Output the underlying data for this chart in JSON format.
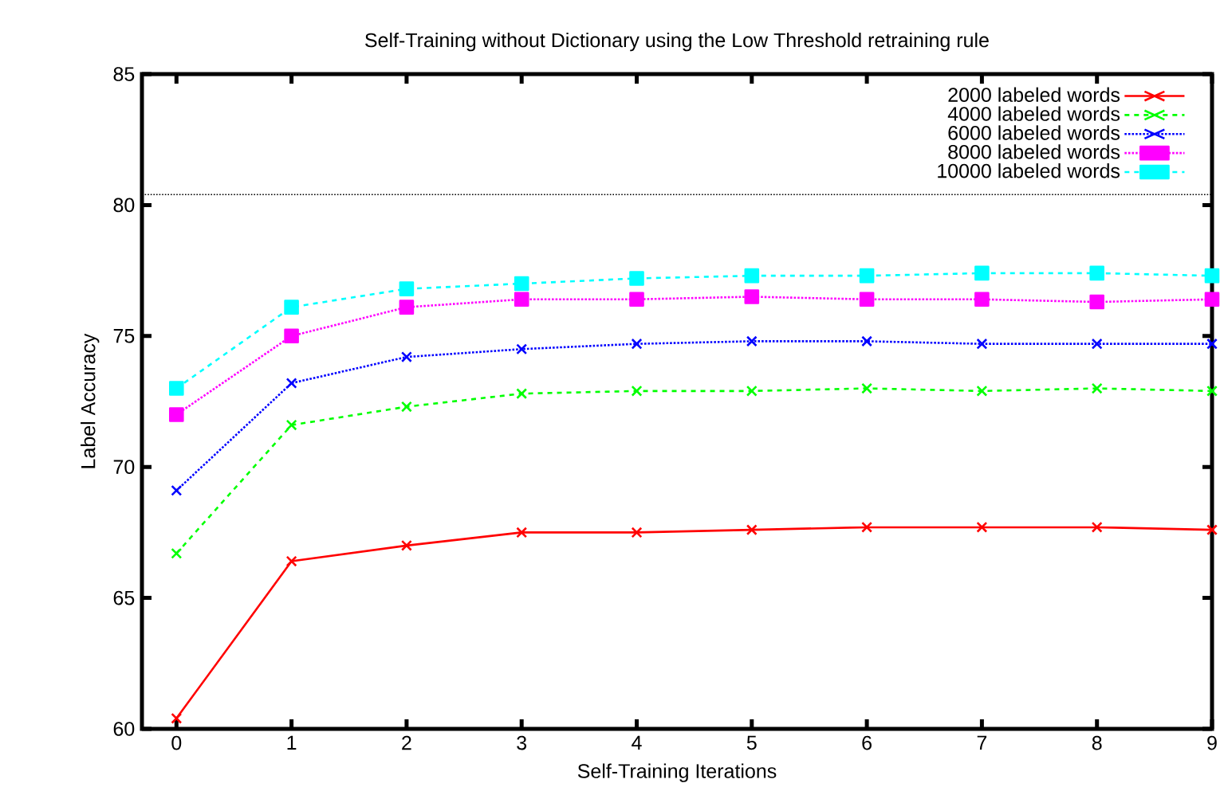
{
  "chart_data": {
    "type": "line",
    "title": "Self-Training without Dictionary using the Low Threshold retraining rule",
    "xlabel": "Self-Training Iterations",
    "ylabel": "Label Accuracy",
    "x": [
      0,
      1,
      2,
      3,
      4,
      5,
      6,
      7,
      8,
      9
    ],
    "xlim": [
      -0.3,
      9
    ],
    "xticks": [
      0,
      1,
      2,
      3,
      4,
      5,
      6,
      7,
      8,
      9
    ],
    "ylim": [
      60,
      85
    ],
    "yticks": [
      60,
      65,
      70,
      75,
      80,
      85
    ],
    "series": [
      {
        "name": "2000 labeled words",
        "color": "#ff0000",
        "marker": "cross",
        "line_style": "solid",
        "values": [
          60.4,
          66.4,
          67.0,
          67.5,
          67.5,
          67.6,
          67.7,
          67.7,
          67.7,
          67.6
        ]
      },
      {
        "name": "4000 labeled words",
        "color": "#00ff00",
        "marker": "cross",
        "line_style": "dashed",
        "values": [
          66.7,
          71.6,
          72.3,
          72.8,
          72.9,
          72.9,
          73.0,
          72.9,
          73.0,
          72.9
        ]
      },
      {
        "name": "6000 labeled words",
        "color": "#0000ff",
        "marker": "cross",
        "line_style": "dotted",
        "values": [
          69.1,
          73.2,
          74.2,
          74.5,
          74.7,
          74.8,
          74.8,
          74.7,
          74.7,
          74.7
        ]
      },
      {
        "name": "8000 labeled words",
        "color": "#ff00ff",
        "marker": "square",
        "line_style": "dotted",
        "values": [
          72.0,
          75.0,
          76.1,
          76.4,
          76.4,
          76.5,
          76.4,
          76.4,
          76.3,
          76.4
        ]
      },
      {
        "name": "10000 labeled words",
        "color": "#00ffff",
        "marker": "square",
        "line_style": "dashed",
        "values": [
          73.0,
          76.1,
          76.8,
          77.0,
          77.2,
          77.3,
          77.3,
          77.4,
          77.4,
          77.3
        ]
      }
    ],
    "ref_lines": [
      {
        "axis": "y",
        "value": 80.4,
        "color": "#000000",
        "line_style": "dotted"
      }
    ],
    "legend": "top right",
    "grid": false
  }
}
